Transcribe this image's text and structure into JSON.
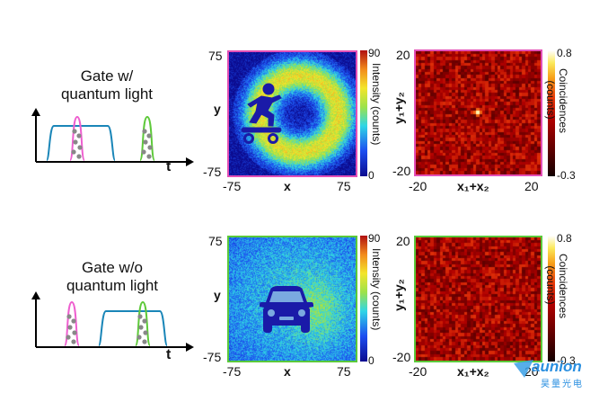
{
  "rows": [
    {
      "gate_title": [
        "Gate w/",
        "quantum light"
      ],
      "time_label": "t",
      "intensity": {
        "x_ticks": [
          "-75",
          "75"
        ],
        "y_ticks": [
          "75",
          "-75"
        ],
        "xlabel": "x",
        "ylabel": "y",
        "colorbar_label": "Intensity (counts)",
        "cb_max": "90",
        "cb_min": "0",
        "frame_color": "#e34fb6",
        "object_icon": "skateboarder-icon"
      },
      "coincidence": {
        "x_ticks": [
          "-20",
          "20"
        ],
        "y_ticks": [
          "20",
          "-20"
        ],
        "xlabel": "x₁+x₂",
        "ylabel": "y₁+y₂",
        "colorbar_label": "Coincidences (counts)",
        "cb_max": "0.8",
        "cb_min": "-0.3",
        "frame_color": "#e34fb6"
      }
    },
    {
      "gate_title": [
        "Gate w/o",
        "quantum light"
      ],
      "time_label": "t",
      "intensity": {
        "x_ticks": [
          "-75",
          "75"
        ],
        "y_ticks": [
          "75",
          "-75"
        ],
        "xlabel": "x",
        "ylabel": "y",
        "colorbar_label": "Intensity (counts)",
        "cb_max": "90",
        "cb_min": "0",
        "frame_color": "#5ac93a",
        "object_icon": "car-icon"
      },
      "coincidence": {
        "x_ticks": [
          "-20",
          "20"
        ],
        "y_ticks": [
          "20",
          "-20"
        ],
        "xlabel": "x₁+x₂",
        "ylabel": "y₁+y₂",
        "colorbar_label": "Coincidences (counts)",
        "cb_max": "0.8",
        "cb_min": "-0.3",
        "frame_color": "#5ac93a"
      }
    }
  ],
  "watermark": {
    "brand": "aunion",
    "sub": "昊量光电"
  },
  "colors": {
    "gate_pink": "#ee5fcf",
    "gate_green": "#5ec93a",
    "pulse_blue": "#1a86b8"
  }
}
